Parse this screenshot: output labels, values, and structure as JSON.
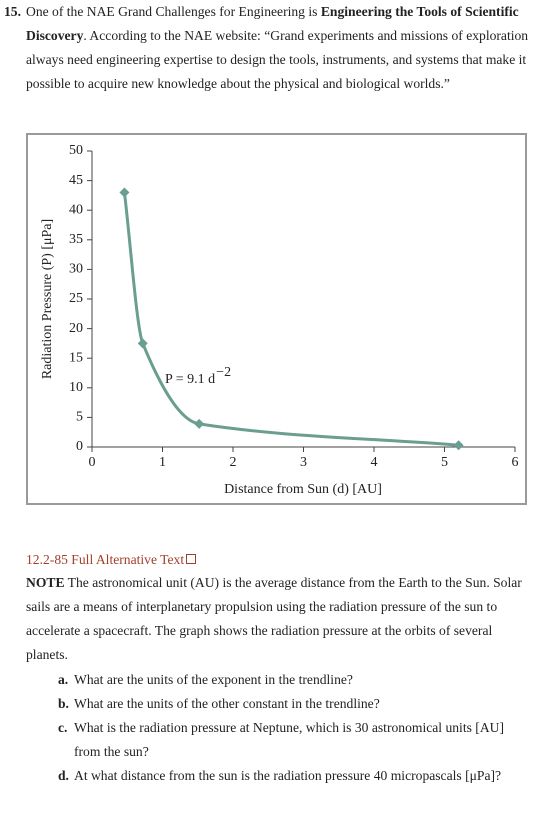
{
  "problem": {
    "number": "15.",
    "intro": [
      "One of the NAE Grand Challenges for Engineering is ",
      "Engineering the Tools of Scientific Discovery",
      ". According to the NAE website: “Grand experiments and missions of exploration always need engineering expertise to design the tools, instruments, and systems that make it possible to acquire new knowledge about the physical and biological worlds.”"
    ]
  },
  "chart_data": {
    "type": "line",
    "x_label": "Distance from Sun (d) [AU]",
    "y_label": "Radiation Pressure (P) [μPa]",
    "annotation": "P = 9.1 d",
    "annotation_exponent": "−2",
    "x": [
      0.46,
      0.72,
      1.52,
      5.2
    ],
    "series": [
      {
        "color": "#6a9e90",
        "values": [
          43,
          17.5,
          3.9,
          0.3
        ]
      }
    ],
    "xlim": [
      0,
      6
    ],
    "xticks": [
      0,
      1,
      2,
      3,
      4,
      5,
      6
    ],
    "ylim": [
      0,
      50
    ],
    "yticks": [
      0,
      5,
      10,
      15,
      20,
      25,
      30,
      35,
      40,
      45,
      50
    ],
    "markers": "diamond"
  },
  "alt_text_link": "12.2-85 Full Alternative Text",
  "note": {
    "label": "NOTE",
    "text": " The astronomical unit (AU) is the average distance from the Earth to the Sun. Solar sails are a means of interplanetary propulsion using the radiation pressure of the sun to accelerate a spacecraft. The graph shows the radiation pressure at the orbits of several planets."
  },
  "questions": [
    {
      "letter": "a.",
      "text": "What are the units of the exponent in the trendline?"
    },
    {
      "letter": "b.",
      "text": "What are the units of the other constant in the trendline?"
    },
    {
      "letter": "c.",
      "text": "What is the radiation pressure at Neptune, which is 30 astronomical units [AU] from the sun?"
    },
    {
      "letter": "d.",
      "text": "At what distance from the sun is the radiation pressure 40 micropascals [μPa]?"
    }
  ]
}
